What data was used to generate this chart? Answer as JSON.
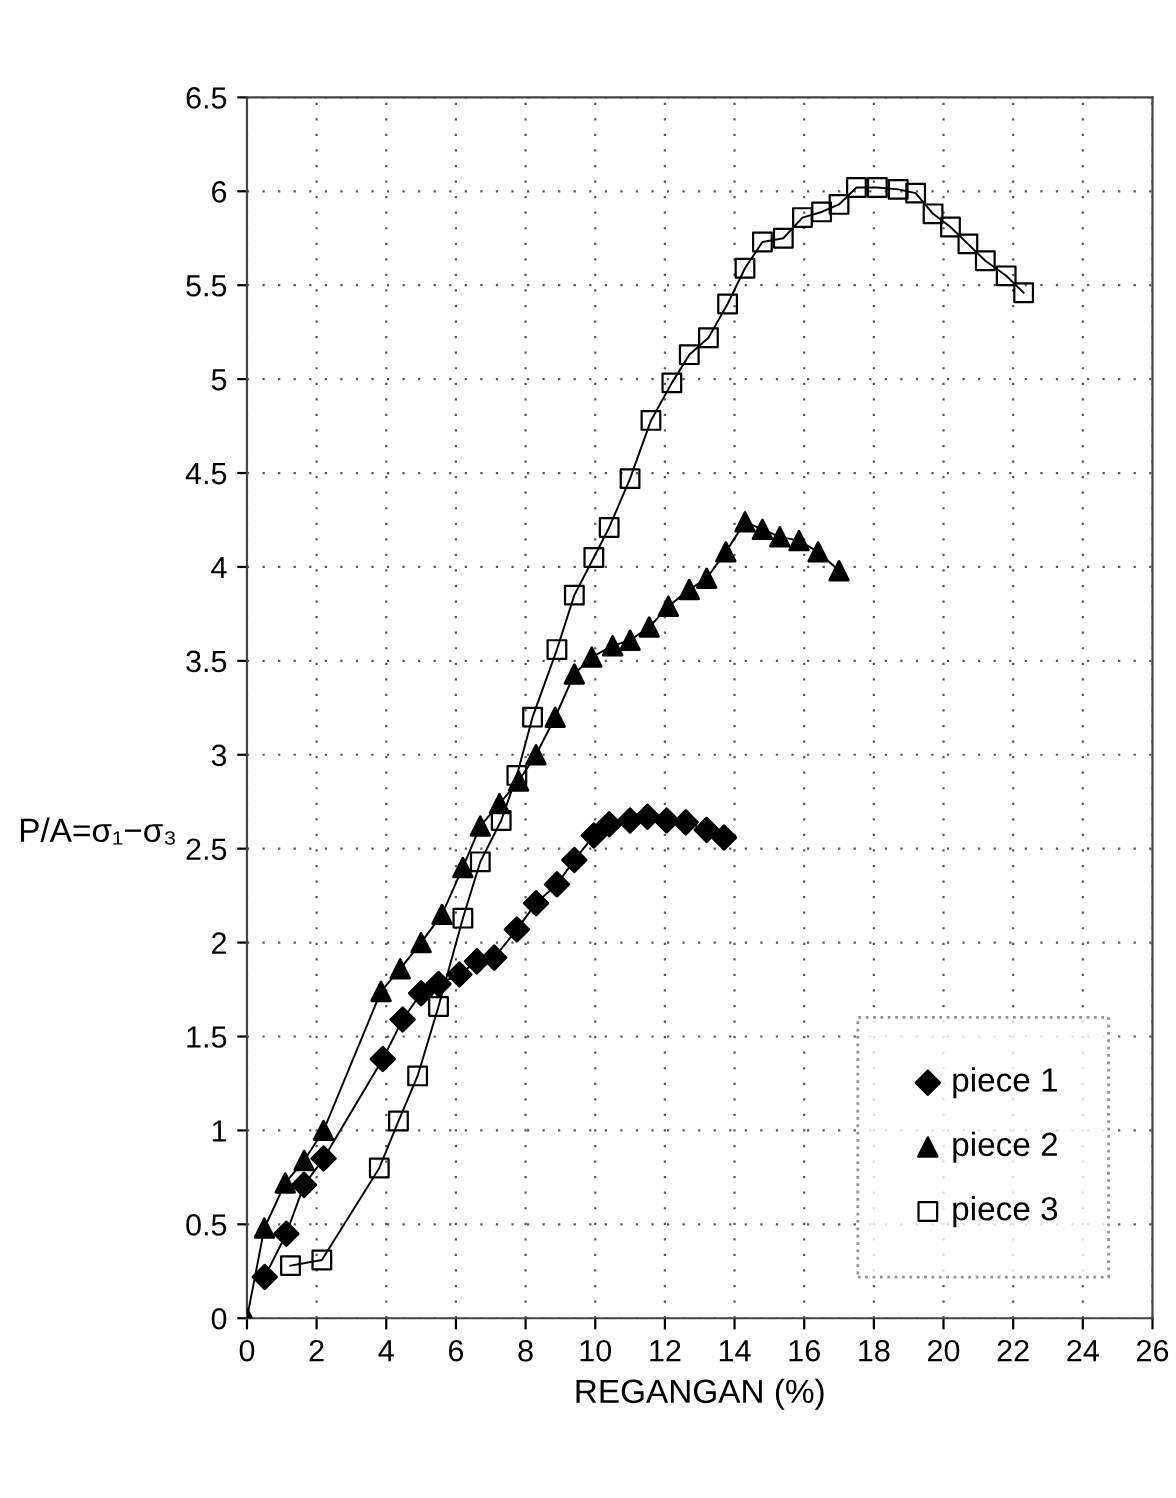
{
  "chart_data": {
    "type": "line",
    "xlabel": "REGANGAN (%)",
    "ylabel": "P/A=σ₁−σ₃",
    "xlim": [
      0,
      26
    ],
    "xticks": [
      0,
      2,
      4,
      6,
      8,
      10,
      12,
      14,
      16,
      18,
      20,
      22,
      24,
      26
    ],
    "ylim": [
      0,
      6.5
    ],
    "yticks": [
      0,
      0.5,
      1,
      1.5,
      2,
      2.5,
      3,
      3.5,
      4,
      4.5,
      5,
      5.5,
      6,
      6.5
    ],
    "grid": true,
    "legend": "bottom right",
    "line_style": "solid",
    "series": [
      {
        "name": "piece 1",
        "color": "#000000",
        "marker": "diamond",
        "x": [
          0.51,
          1.13,
          1.64,
          2.2,
          3.9,
          4.47,
          5.0,
          5.5,
          6.1,
          6.6,
          7.1,
          7.75,
          8.3,
          8.9,
          9.4,
          9.96,
          10.4,
          11.0,
          11.5,
          12.05,
          12.6,
          13.2,
          13.7
        ],
        "values": [
          0.22,
          0.45,
          0.71,
          0.85,
          1.38,
          1.59,
          1.73,
          1.78,
          1.83,
          1.9,
          1.92,
          2.07,
          2.21,
          2.31,
          2.44,
          2.57,
          2.63,
          2.65,
          2.67,
          2.65,
          2.64,
          2.6,
          2.56
        ]
      },
      {
        "name": "piece 2",
        "color": "#000000",
        "marker": "triangle",
        "x": [
          0,
          0.5,
          1.1,
          1.64,
          2.2,
          3.85,
          4.4,
          5.0,
          5.6,
          6.2,
          6.7,
          7.25,
          7.8,
          8.3,
          8.85,
          9.4,
          9.9,
          10.5,
          11.0,
          11.55,
          12.1,
          12.7,
          13.2,
          13.75,
          14.3,
          14.8,
          15.3,
          15.85,
          16.4,
          17.0
        ],
        "values": [
          0,
          0.48,
          0.72,
          0.84,
          1.0,
          1.74,
          1.86,
          2.0,
          2.15,
          2.4,
          2.62,
          2.74,
          2.86,
          3.0,
          3.2,
          3.43,
          3.52,
          3.58,
          3.61,
          3.68,
          3.79,
          3.88,
          3.94,
          4.08,
          4.24,
          4.2,
          4.16,
          4.14,
          4.08,
          3.98
        ]
      },
      {
        "name": "piece 3",
        "color": "#000000",
        "marker": "square",
        "x": [
          1.25,
          2.15,
          3.8,
          4.35,
          4.9,
          5.5,
          6.2,
          6.7,
          7.3,
          7.75,
          8.2,
          8.9,
          9.4,
          9.96,
          10.4,
          11.0,
          11.6,
          12.2,
          12.7,
          13.25,
          13.8,
          14.3,
          14.8,
          15.4,
          15.95,
          16.5,
          17.0,
          17.5,
          18.1,
          18.7,
          19.2,
          19.7,
          20.2,
          20.7,
          21.2,
          21.8,
          22.3
        ],
        "values": [
          0.28,
          0.31,
          0.8,
          1.05,
          1.29,
          1.66,
          2.13,
          2.43,
          2.65,
          2.89,
          3.2,
          3.56,
          3.85,
          4.05,
          4.21,
          4.47,
          4.78,
          4.98,
          5.13,
          5.22,
          5.4,
          5.59,
          5.73,
          5.75,
          5.86,
          5.89,
          5.93,
          6.02,
          6.02,
          6.01,
          5.99,
          5.88,
          5.81,
          5.72,
          5.63,
          5.55,
          5.46
        ]
      }
    ]
  }
}
